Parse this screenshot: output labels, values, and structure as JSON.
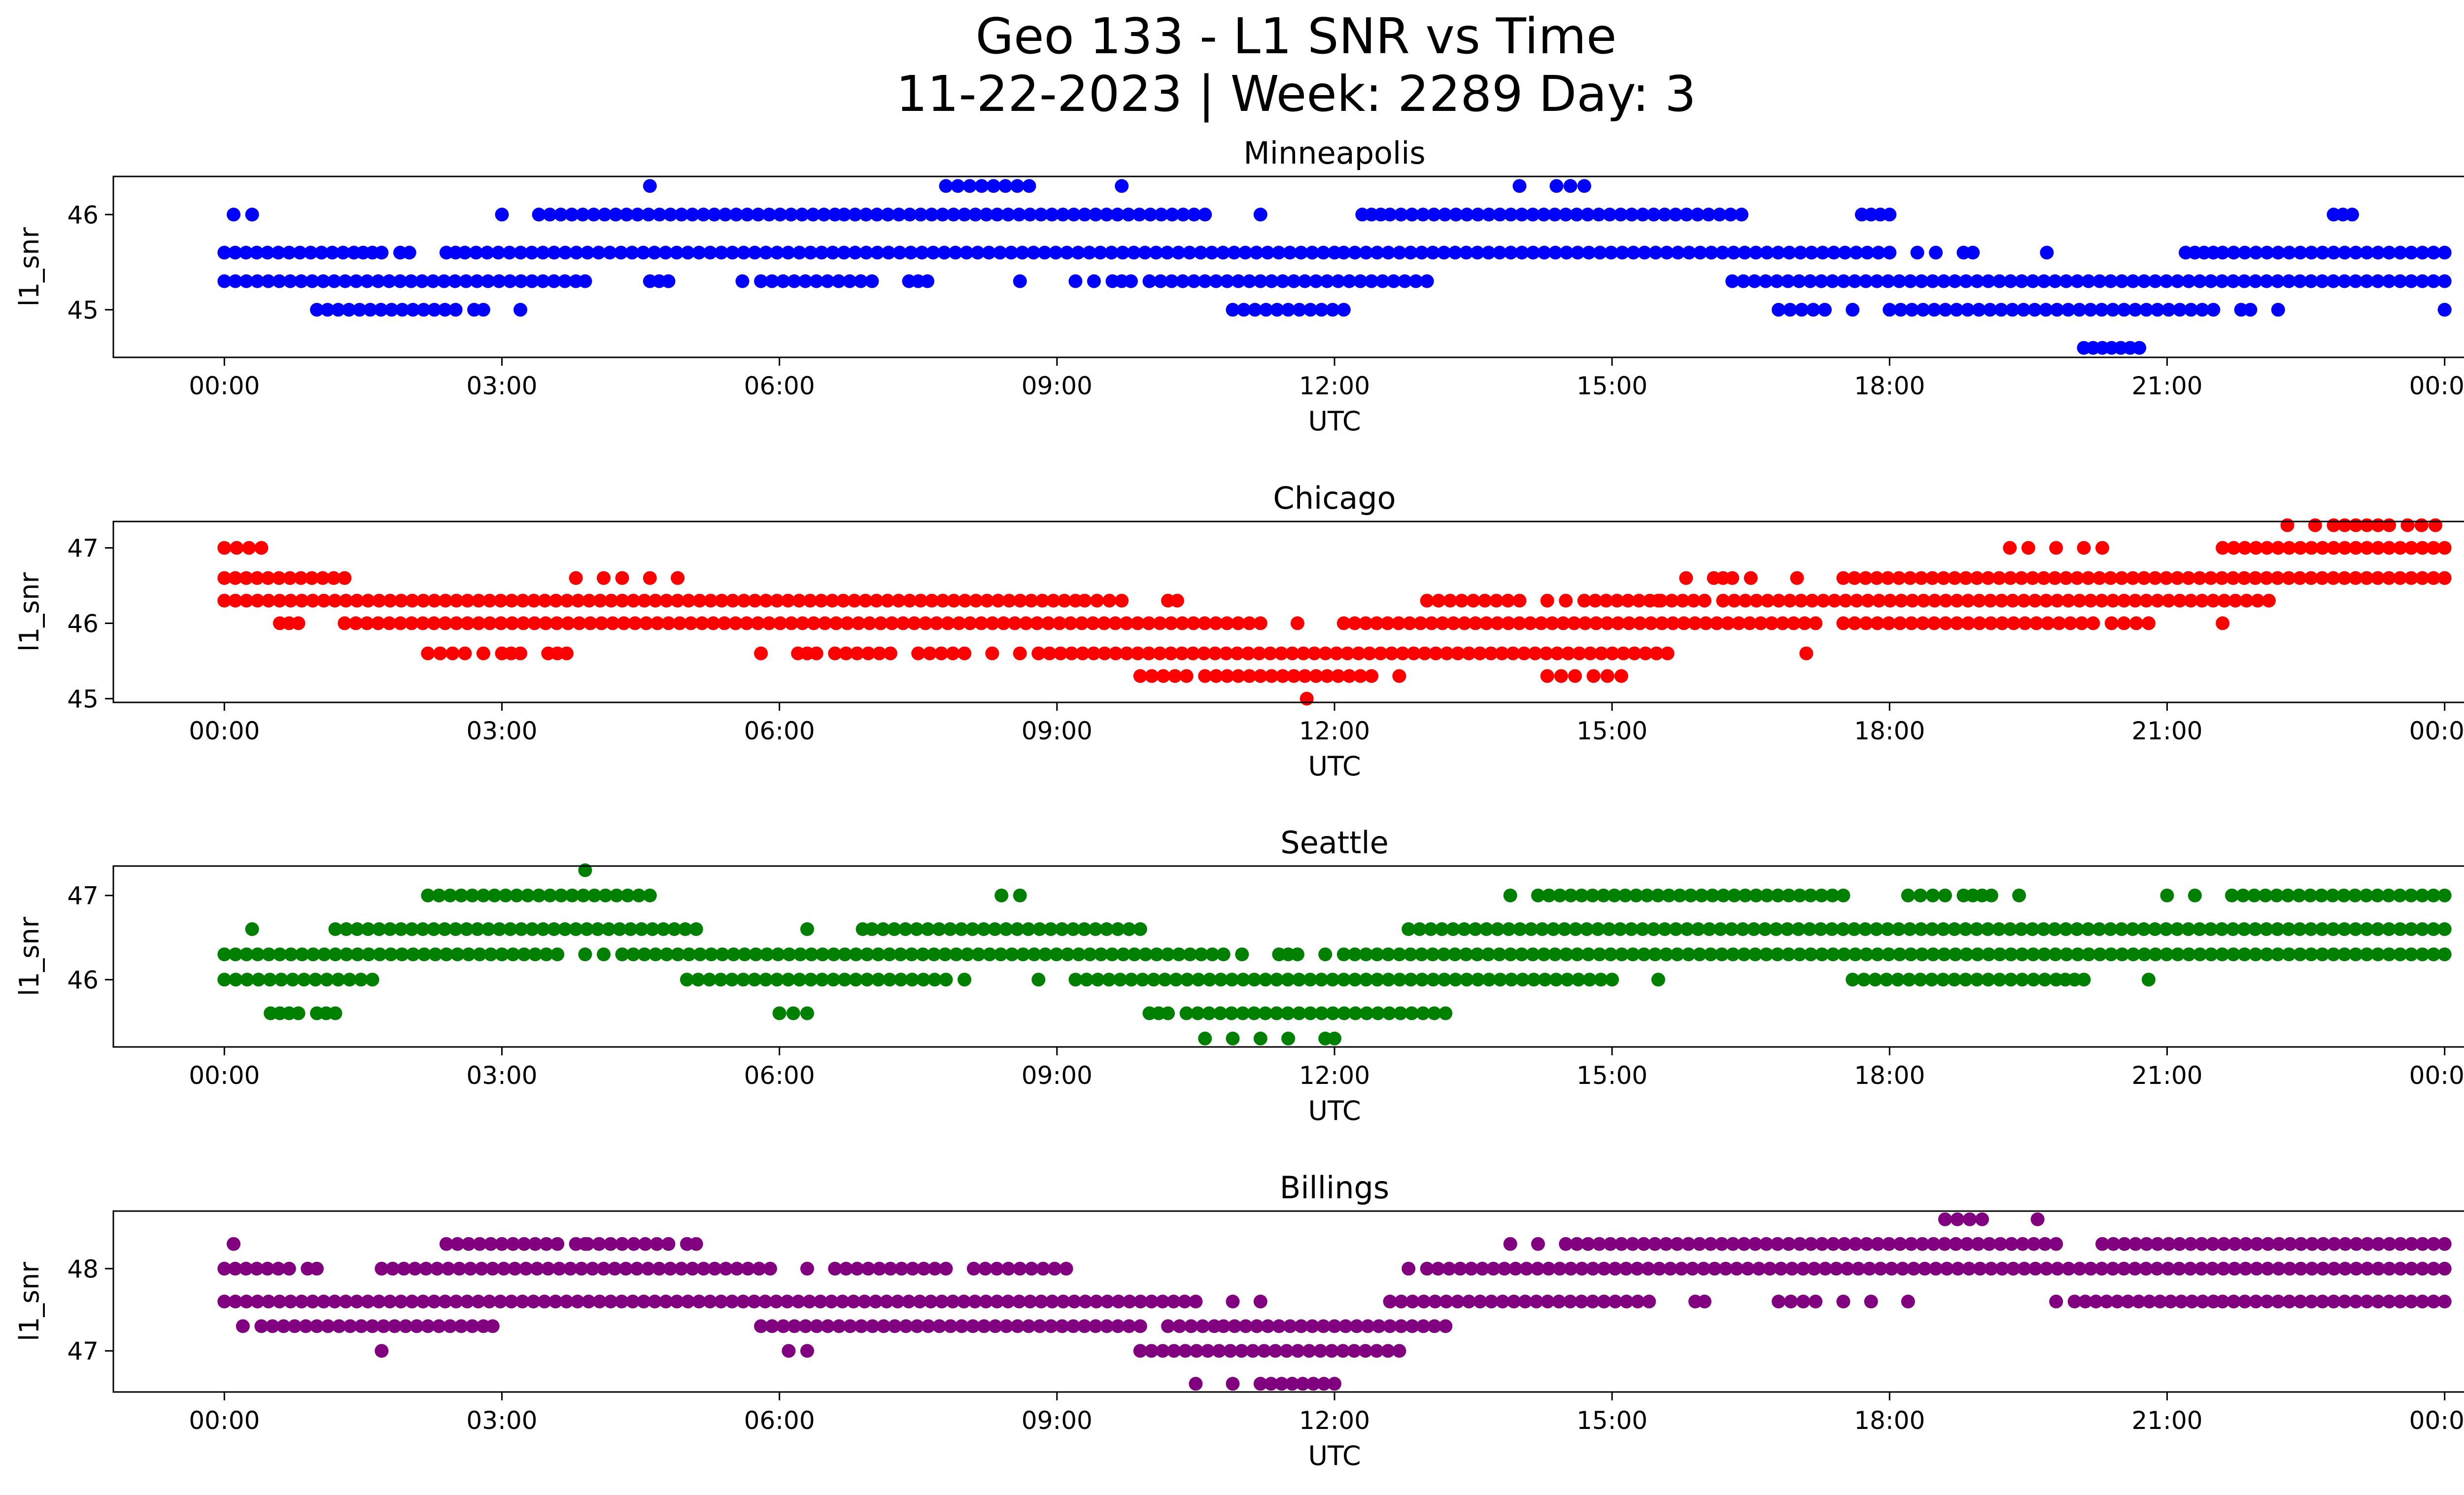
{
  "figure": {
    "title_line1": "Geo 133 - L1 SNR vs Time",
    "title_line2": "11-22-2023 | Week: 2289 Day: 3"
  },
  "chart_data": [
    {
      "type": "scatter",
      "title": "Minneapolis",
      "color": "#0000ff",
      "xlabel": "UTC",
      "ylabel": "l1_snr",
      "xlim_hours": [
        -1.2,
        25.2
      ],
      "ylim": [
        44.5,
        46.4
      ],
      "x_ticks": [
        "00:00",
        "03:00",
        "06:00",
        "09:00",
        "12:00",
        "15:00",
        "18:00",
        "21:00",
        "00:00"
      ],
      "y_ticks": [
        45,
        46
      ],
      "segments": [
        {
          "y": 45.6,
          "ranges": [
            [
              0.0,
              1.4
            ],
            [
              1.5,
              1.7
            ],
            [
              1.9,
              2.0
            ],
            [
              2.4,
              2.5
            ],
            [
              2.6,
              12.0
            ],
            [
              12.1,
              18.0
            ]
          ]
        },
        {
          "y": 45.6,
          "points": [
            18.3,
            18.5,
            18.8,
            18.9,
            19.7
          ]
        },
        {
          "y": 45.6,
          "ranges": [
            [
              21.2,
              21.5
            ],
            [
              21.6,
              24.0
            ]
          ]
        },
        {
          "y": 45.3,
          "ranges": [
            [
              0.0,
              3.8
            ],
            [
              4.7,
              4.8
            ],
            [
              5.8,
              7.0
            ],
            [
              7.4,
              7.6
            ],
            [
              9.6,
              9.8
            ],
            [
              10.0,
              13.0
            ],
            [
              16.3,
              24.0
            ]
          ]
        },
        {
          "y": 45.3,
          "points": [
            3.9,
            4.6,
            4.8,
            5.6,
            8.6,
            9.2,
            9.4
          ]
        },
        {
          "y": 45.0,
          "ranges": [
            [
              1.0,
              2.5
            ],
            [
              10.9,
              12.1
            ],
            [
              16.8,
              17.3
            ],
            [
              18.0,
              21.5
            ],
            [
              24.0,
              24.0
            ]
          ]
        },
        {
          "y": 45.0,
          "points": [
            2.7,
            2.8,
            3.2,
            17.6,
            21.8,
            21.9,
            22.2
          ]
        },
        {
          "y": 44.6,
          "ranges": [
            [
              20.1,
              20.3
            ],
            [
              20.4,
              20.7
            ]
          ]
        },
        {
          "y": 46.0,
          "ranges": [
            [
              3.4,
              6.6
            ],
            [
              6.7,
              10.6
            ],
            [
              12.3,
              12.5
            ],
            [
              12.6,
              16.4
            ],
            [
              17.7,
              18.0
            ],
            [
              22.8,
              23.0
            ]
          ]
        },
        {
          "y": 46.0,
          "points": [
            0.1,
            0.3,
            3.0,
            11.2
          ]
        },
        {
          "y": 46.3,
          "ranges": [
            [
              7.8,
              8.7
            ],
            [
              14.4,
              14.7
            ]
          ]
        },
        {
          "y": 46.3,
          "points": [
            4.6,
            9.7,
            14.0
          ]
        }
      ]
    },
    {
      "type": "scatter",
      "title": "Chicago",
      "color": "#ff0000",
      "xlabel": "UTC",
      "ylabel": "l1_snr",
      "xlim_hours": [
        -1.2,
        25.2
      ],
      "ylim": [
        44.95,
        47.35
      ],
      "x_ticks": [
        "00:00",
        "03:00",
        "06:00",
        "09:00",
        "12:00",
        "15:00",
        "18:00",
        "21:00",
        "00:00"
      ],
      "y_ticks": [
        45,
        46,
        47
      ],
      "segments": [
        {
          "y": 47.0,
          "ranges": [
            [
              0.0,
              0.4
            ],
            [
              21.6,
              24.0
            ]
          ]
        },
        {
          "y": 47.0,
          "points": [
            19.3,
            19.5,
            19.8,
            20.1,
            20.3
          ]
        },
        {
          "y": 47.3,
          "ranges": [
            [
              22.8,
              23.4
            ],
            [
              23.6,
              23.9
            ]
          ]
        },
        {
          "y": 47.3,
          "points": [
            22.3,
            22.6
          ]
        },
        {
          "y": 46.6,
          "ranges": [
            [
              0.0,
              1.3
            ],
            [
              16.1,
              16.3
            ],
            [
              17.5,
              24.0
            ]
          ]
        },
        {
          "y": 46.6,
          "points": [
            3.8,
            4.1,
            4.3,
            4.6,
            4.9,
            15.8,
            16.5,
            17.0
          ]
        },
        {
          "y": 46.3,
          "ranges": [
            [
              0.0,
              9.2
            ],
            [
              9.3,
              9.7
            ],
            [
              13.0,
              14.0
            ],
            [
              14.7,
              16.0
            ],
            [
              16.2,
              22.1
            ]
          ]
        },
        {
          "y": 46.3,
          "points": [
            10.2,
            10.3,
            14.3,
            14.5,
            15.5
          ]
        },
        {
          "y": 46.0,
          "ranges": [
            [
              0.6,
              0.8
            ],
            [
              1.3,
              11.2
            ],
            [
              12.1,
              17.2
            ],
            [
              17.5,
              20.2
            ],
            [
              20.4,
              20.8
            ]
          ]
        },
        {
          "y": 46.0,
          "points": [
            11.6,
            21.6
          ]
        },
        {
          "y": 45.6,
          "ranges": [
            [
              2.2,
              2.6
            ],
            [
              3.0,
              3.2
            ],
            [
              3.5,
              3.7
            ],
            [
              6.2,
              6.4
            ],
            [
              6.6,
              7.2
            ],
            [
              7.5,
              8.0
            ],
            [
              8.8,
              15.6
            ]
          ]
        },
        {
          "y": 45.6,
          "points": [
            2.8,
            5.8,
            8.3,
            8.6,
            17.1
          ]
        },
        {
          "y": 45.3,
          "ranges": [
            [
              9.9,
              10.4
            ],
            [
              10.6,
              12.4
            ],
            [
              14.3,
              14.6
            ],
            [
              14.8,
              15.1
            ]
          ]
        },
        {
          "y": 45.3,
          "points": [
            12.7
          ]
        },
        {
          "y": 45.0,
          "points": [
            11.7
          ]
        }
      ]
    },
    {
      "type": "scatter",
      "title": "Seattle",
      "color": "#008000",
      "xlabel": "UTC",
      "ylabel": "l1_snr",
      "xlim_hours": [
        -1.2,
        25.2
      ],
      "ylim": [
        45.2,
        47.35
      ],
      "x_ticks": [
        "00:00",
        "03:00",
        "06:00",
        "09:00",
        "12:00",
        "15:00",
        "18:00",
        "21:00",
        "00:00"
      ],
      "y_ticks": [
        46,
        47
      ],
      "segments": [
        {
          "y": 47.0,
          "ranges": [
            [
              2.2,
              4.6
            ],
            [
              14.2,
              17.5
            ],
            [
              18.2,
              18.6
            ],
            [
              18.8,
              19.1
            ],
            [
              21.7,
              24.0
            ]
          ]
        },
        {
          "y": 47.0,
          "points": [
            8.4,
            8.6,
            13.9,
            19.4,
            21.0,
            21.3
          ]
        },
        {
          "y": 47.3,
          "points": [
            3.9
          ]
        },
        {
          "y": 46.6,
          "ranges": [
            [
              1.2,
              5.1
            ],
            [
              7.0,
              9.9
            ],
            [
              12.8,
              24.0
            ]
          ]
        },
        {
          "y": 46.6,
          "points": [
            0.3,
            6.3,
            6.9
          ]
        },
        {
          "y": 46.3,
          "ranges": [
            [
              0.0,
              3.6
            ],
            [
              4.3,
              10.8
            ],
            [
              11.4,
              11.6
            ],
            [
              12.1,
              24.0
            ]
          ]
        },
        {
          "y": 46.3,
          "points": [
            3.9,
            4.1,
            11.0,
            11.9
          ]
        },
        {
          "y": 46.0,
          "ranges": [
            [
              0.0,
              1.6
            ],
            [
              5.0,
              7.8
            ],
            [
              9.2,
              15.0
            ],
            [
              17.6,
              19.8
            ],
            [
              19.9,
              20.1
            ]
          ]
        },
        {
          "y": 46.0,
          "points": [
            8.0,
            8.8,
            15.5,
            20.8
          ]
        },
        {
          "y": 45.6,
          "ranges": [
            [
              0.5,
              0.8
            ],
            [
              1.0,
              1.2
            ],
            [
              6.0,
              6.3
            ],
            [
              10.0,
              10.2
            ],
            [
              10.4,
              13.2
            ]
          ]
        },
        {
          "y": 45.3,
          "points": [
            10.6,
            10.9,
            11.2,
            11.5,
            11.9,
            12.0
          ]
        }
      ]
    },
    {
      "type": "scatter",
      "title": "Billings",
      "color": "#800080",
      "xlabel": "UTC",
      "ylabel": "l1_snr",
      "xlim_hours": [
        -1.2,
        25.2
      ],
      "ylim": [
        46.5,
        48.7
      ],
      "x_ticks": [
        "00:00",
        "03:00",
        "06:00",
        "09:00",
        "12:00",
        "15:00",
        "18:00",
        "21:00",
        "00:00"
      ],
      "y_ticks": [
        47,
        48
      ],
      "segments": [
        {
          "y": 48.0,
          "ranges": [
            [
              0.0,
              0.7
            ],
            [
              1.7,
              5.9
            ],
            [
              6.6,
              7.8
            ],
            [
              8.1,
              9.1
            ],
            [
              13.0,
              24.0
            ]
          ]
        },
        {
          "y": 48.0,
          "points": [
            0.9,
            1.0,
            6.3,
            12.8
          ]
        },
        {
          "y": 48.3,
          "ranges": [
            [
              2.4,
              3.6
            ],
            [
              3.8,
              4.8
            ],
            [
              14.5,
              19.8
            ],
            [
              20.3,
              24.0
            ]
          ]
        },
        {
          "y": 48.3,
          "points": [
            0.1,
            3.9,
            5.0,
            5.1,
            13.9,
            14.2
          ]
        },
        {
          "y": 48.6,
          "ranges": [
            [
              18.6,
              19.0
            ]
          ]
        },
        {
          "y": 48.6,
          "points": [
            19.6
          ]
        },
        {
          "y": 47.6,
          "ranges": [
            [
              0.0,
              10.5
            ],
            [
              12.6,
              15.4
            ],
            [
              16.8,
              17.2
            ],
            [
              20.0,
              21.5
            ],
            [
              21.6,
              24.0
            ]
          ]
        },
        {
          "y": 47.6,
          "points": [
            10.9,
            11.2,
            15.9,
            16.0,
            17.5,
            17.8,
            18.2,
            19.8
          ]
        },
        {
          "y": 47.3,
          "ranges": [
            [
              0.4,
              2.8
            ],
            [
              5.8,
              9.9
            ],
            [
              10.2,
              10.7
            ],
            [
              10.8,
              13.2
            ]
          ]
        },
        {
          "y": 47.3,
          "points": [
            0.2,
            2.9
          ]
        },
        {
          "y": 47.0,
          "ranges": [
            [
              9.9,
              12.7
            ]
          ]
        },
        {
          "y": 47.0,
          "points": [
            1.7,
            6.1,
            6.3
          ]
        },
        {
          "y": 46.6,
          "ranges": [
            [
              11.2,
              12.0
            ]
          ]
        },
        {
          "y": 46.6,
          "points": [
            10.5,
            10.9
          ]
        }
      ]
    }
  ]
}
